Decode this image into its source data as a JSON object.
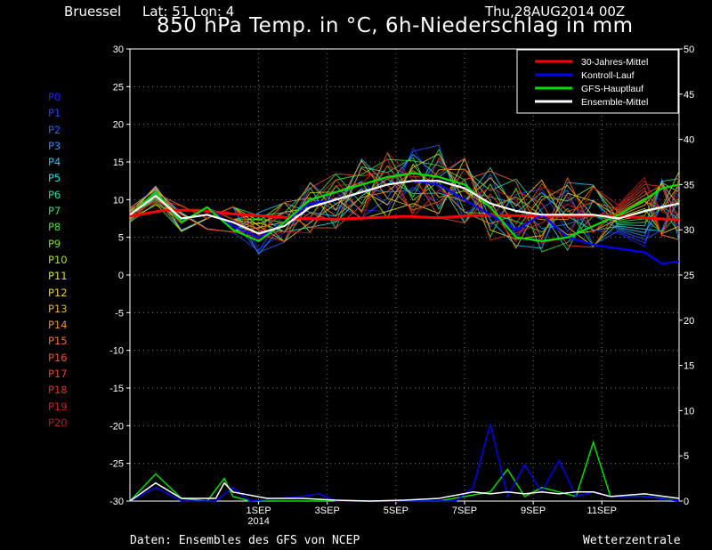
{
  "header": {
    "station": "Bruessel",
    "coords": "Lat: 51 Lon: 4",
    "run": "Thu,28AUG2014 00Z",
    "title": "850 hPa Temp. in °C, 6h-Niederschlag in mm"
  },
  "footer": {
    "source": "Daten: Ensembles des GFS von NCEP",
    "brand": "Wetterzentrale"
  },
  "members": [
    {
      "label": "P0",
      "color": "#2020ff"
    },
    {
      "label": "P1",
      "color": "#2040ff"
    },
    {
      "label": "P2",
      "color": "#2060ff"
    },
    {
      "label": "P3",
      "color": "#2090ff"
    },
    {
      "label": "P4",
      "color": "#20c0ff"
    },
    {
      "label": "P5",
      "color": "#20e0e0"
    },
    {
      "label": "P6",
      "color": "#20e0a0"
    },
    {
      "label": "P7",
      "color": "#30e060"
    },
    {
      "label": "P8",
      "color": "#40e030"
    },
    {
      "label": "P9",
      "color": "#80e020"
    },
    {
      "label": "P10",
      "color": "#b0e020"
    },
    {
      "label": "P11",
      "color": "#e0e020"
    },
    {
      "label": "P12",
      "color": "#f0d020"
    },
    {
      "label": "P13",
      "color": "#f0b020"
    },
    {
      "label": "P14",
      "color": "#f09020"
    },
    {
      "label": "P15",
      "color": "#f07020"
    },
    {
      "label": "P16",
      "color": "#f05020"
    },
    {
      "label": "P17",
      "color": "#f04020"
    },
    {
      "label": "P18",
      "color": "#e03020"
    },
    {
      "label": "P19",
      "color": "#d02020"
    },
    {
      "label": "P20",
      "color": "#c01818"
    }
  ],
  "chart_data": {
    "type": "line",
    "title": "850 hPa Temp. in °C, 6h-Niederschlag in mm",
    "ylim": [
      -30,
      30
    ],
    "y2lim": [
      0,
      50
    ],
    "yticks": [
      30,
      25,
      20,
      15,
      10,
      5,
      0,
      -5,
      -10,
      -15,
      -20,
      -25,
      -30
    ],
    "y2ticks": [
      50,
      45,
      40,
      35,
      30,
      25,
      20,
      15,
      10,
      5,
      0
    ],
    "xlim": [
      0,
      16
    ],
    "xticks": [
      {
        "t": 3.75,
        "label": "1SEP",
        "sub": "2014"
      },
      {
        "t": 5.75,
        "label": "3SEP",
        "sub": ""
      },
      {
        "t": 7.75,
        "label": "5SEP",
        "sub": ""
      },
      {
        "t": 9.75,
        "label": "7SEP",
        "sub": ""
      },
      {
        "t": 11.75,
        "label": "9SEP",
        "sub": ""
      },
      {
        "t": 13.75,
        "label": "11SEP",
        "sub": ""
      }
    ],
    "grid": true,
    "legend": {
      "position": "top-right",
      "entries": [
        {
          "label": "30-Jahres-Mittel",
          "color": "#ff0000"
        },
        {
          "label": "Kontroll-Lauf",
          "color": "#0000ff"
        },
        {
          "label": "GFS-Hauptlauf",
          "color": "#00e000"
        },
        {
          "label": "Ensemble-Mittel",
          "color": "#ffffff"
        }
      ]
    },
    "series": [
      {
        "name": "30-Jahres-Mittel",
        "color": "#ff0000",
        "x": [
          0,
          1,
          2,
          3,
          4,
          5,
          6,
          7,
          8,
          9,
          10,
          11,
          12,
          13,
          14,
          15,
          16
        ],
        "values": [
          7.8,
          8.6,
          8.6,
          8.1,
          7.8,
          7.5,
          7.4,
          7.6,
          7.8,
          7.6,
          7.9,
          7.9,
          7.8,
          7.8,
          7.9,
          7.6,
          7.3
        ]
      },
      {
        "name": "Kontroll-Lauf",
        "color": "#0000ff",
        "x": [
          0,
          0.75,
          1.5,
          2.25,
          3,
          3.75,
          4.5,
          5.25,
          6,
          6.75,
          7.5,
          8.25,
          9,
          9.75,
          10.5,
          11.25,
          12,
          12.75,
          13.5,
          14.25,
          15,
          15.5,
          16
        ],
        "values": [
          8,
          11,
          7,
          9,
          6.5,
          5,
          7,
          9.5,
          10,
          11,
          12,
          12.5,
          12,
          10,
          8,
          6,
          8,
          5,
          4,
          3.5,
          3,
          1.5,
          1.8
        ]
      },
      {
        "name": "GFS-Hauptlauf",
        "color": "#00e000",
        "x": [
          0,
          0.75,
          1.5,
          2.25,
          3,
          3.75,
          4.5,
          5.25,
          6,
          6.75,
          7.5,
          8.25,
          9,
          9.75,
          10.5,
          11.25,
          12,
          12.75,
          13.5,
          14.25,
          15,
          15.5,
          16
        ],
        "values": [
          8,
          11,
          7,
          9,
          6,
          4.5,
          7,
          10,
          11,
          12,
          13,
          13.5,
          13,
          12,
          9,
          5,
          4.5,
          5,
          6.5,
          8,
          10,
          11.5,
          12
        ]
      },
      {
        "name": "Ensemble-Mittel",
        "color": "#ffffff",
        "x": [
          0,
          0.75,
          1.5,
          2.25,
          3,
          3.75,
          4.5,
          5.25,
          6,
          6.75,
          7.5,
          8.25,
          9,
          9.75,
          10.5,
          11.25,
          12,
          12.75,
          13.5,
          14.25,
          15,
          15.5,
          16
        ],
        "values": [
          8,
          10.5,
          7.5,
          8,
          7,
          5.5,
          6.5,
          9,
          10,
          11,
          12,
          12.5,
          12.5,
          11.5,
          9.5,
          8.5,
          8,
          8,
          8,
          7.5,
          8.5,
          9,
          9.5
        ]
      }
    ],
    "precipitation": [
      {
        "name": "GFS-Hauptlauf",
        "color": "#00e000",
        "x": [
          0,
          0.75,
          1.5,
          2.25,
          2.75,
          3,
          3.5,
          6,
          9,
          9.75,
          10.5,
          11,
          11.5,
          12,
          12.5,
          13,
          13.5,
          14,
          15,
          15.5,
          16
        ],
        "values": [
          0,
          3,
          0.3,
          0,
          2.5,
          0.5,
          0,
          0,
          0,
          0.5,
          1,
          3.5,
          0.5,
          1.5,
          1,
          0.5,
          6.5,
          0.5,
          0.5,
          0.3,
          0
        ]
      },
      {
        "name": "Kontroll-Lauf",
        "color": "#0000ff",
        "x": [
          0,
          0.75,
          1.5,
          2.5,
          3,
          3.5,
          5,
          5.5,
          6,
          9.5,
          10,
          10.5,
          11,
          11.5,
          12,
          12.5,
          13,
          13.5,
          14,
          15,
          16
        ],
        "values": [
          0,
          1.5,
          0,
          0,
          1.5,
          0,
          0.5,
          0.8,
          0,
          0,
          1.5,
          8.5,
          0.5,
          4,
          1,
          4.5,
          0.5,
          1,
          0.5,
          0.5,
          0
        ]
      },
      {
        "name": "Ensemble-Mittel",
        "color": "#ffffff",
        "x": [
          0,
          0.75,
          1.5,
          2.5,
          2.75,
          3,
          4,
          5,
          6,
          7,
          8,
          9,
          10,
          10.5,
          11,
          11.5,
          12,
          12.5,
          13,
          13.5,
          14,
          15,
          16
        ],
        "values": [
          0,
          2,
          0.3,
          0.3,
          2,
          1,
          0.3,
          0.3,
          0.1,
          0,
          0.1,
          0.3,
          1,
          0.8,
          1,
          0.8,
          1,
          0.8,
          1,
          1,
          0.5,
          0.8,
          0.3
        ]
      }
    ]
  }
}
